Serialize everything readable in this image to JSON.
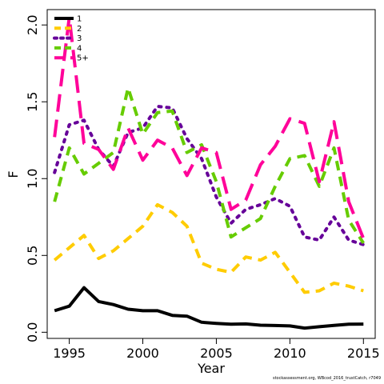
{
  "chart_data": {
    "type": "line",
    "title": "",
    "xlabel": "Year",
    "ylabel": "F",
    "xlim": [
      1993.5,
      2015.8
    ],
    "ylim": [
      -0.04,
      2.1
    ],
    "xticks": [
      1995,
      2000,
      2005,
      2010,
      2015
    ],
    "yticks": [
      0.0,
      0.5,
      1.0,
      1.5,
      2.0
    ],
    "ytick_labels": [
      "0.0",
      "0.5",
      "1.0",
      "1.5",
      "2.0"
    ],
    "legend_position": "top-left",
    "footnote": "stockassessment.org, WBcod_2016_trustCatch, r7049",
    "x": [
      1994,
      1995,
      1996,
      1997,
      1998,
      1999,
      2000,
      2001,
      2002,
      2003,
      2004,
      2005,
      2006,
      2007,
      2008,
      2009,
      2010,
      2011,
      2012,
      2013,
      2014,
      2015
    ],
    "series": [
      {
        "name": "1",
        "color": "#000000",
        "dash": "solid",
        "values": [
          0.14,
          0.17,
          0.29,
          0.2,
          0.18,
          0.15,
          0.14,
          0.14,
          0.11,
          0.105,
          0.065,
          0.058,
          0.052,
          0.054,
          0.046,
          0.044,
          0.041,
          0.027,
          0.036,
          0.045,
          0.052,
          0.053
        ]
      },
      {
        "name": "2",
        "color": "#FFCC00",
        "dash": "dashed",
        "values": [
          0.47,
          0.55,
          0.63,
          0.48,
          0.53,
          0.61,
          0.69,
          0.83,
          0.78,
          0.69,
          0.45,
          0.41,
          0.39,
          0.49,
          0.47,
          0.52,
          0.39,
          0.26,
          0.27,
          0.32,
          0.3,
          0.27
        ]
      },
      {
        "name": "3",
        "color": "#660099",
        "dash": "dotted",
        "values": [
          1.04,
          1.35,
          1.38,
          1.19,
          1.08,
          1.3,
          1.33,
          1.47,
          1.46,
          1.26,
          1.13,
          0.88,
          0.71,
          0.8,
          0.83,
          0.87,
          0.82,
          0.62,
          0.6,
          0.75,
          0.6,
          0.57
        ]
      },
      {
        "name": "4",
        "color": "#66CC00",
        "dash": "dashed",
        "values": [
          0.85,
          1.2,
          1.03,
          1.1,
          1.17,
          1.59,
          1.29,
          1.43,
          1.44,
          1.17,
          1.22,
          0.98,
          0.62,
          0.68,
          0.74,
          0.95,
          1.13,
          1.15,
          0.95,
          1.2,
          0.73,
          0.58
        ]
      },
      {
        "name": "5+",
        "color": "#FF0099",
        "dash": "longdash",
        "values": [
          1.27,
          2.05,
          1.23,
          1.19,
          1.06,
          1.33,
          1.12,
          1.25,
          1.2,
          1.02,
          1.2,
          1.17,
          0.8,
          0.86,
          1.09,
          1.21,
          1.39,
          1.36,
          0.98,
          1.37,
          0.85,
          0.61
        ]
      }
    ]
  }
}
